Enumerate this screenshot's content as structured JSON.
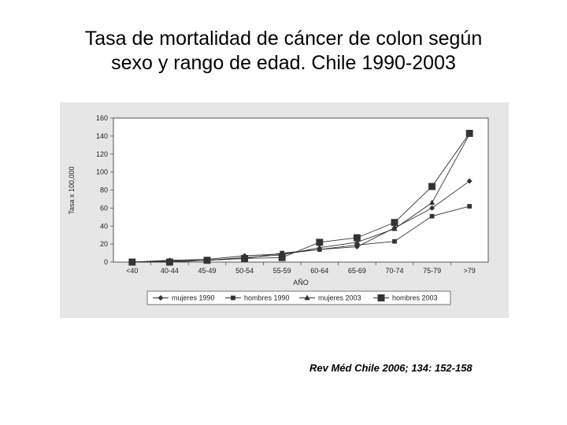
{
  "slide": {
    "title_line1": "Tasa de mortalidad de cáncer de colon según",
    "title_line2": "sexo y rango de edad. Chile 1990-2003",
    "citation": "Rev Méd Chile 2006; 134: 152-158"
  },
  "chart_data": {
    "type": "line",
    "title": "Tasa de mortalidad de cáncer de colon según sexo y rango de edad. Chile 1990-2003",
    "xlabel": "AÑO",
    "ylabel": "Tasa x 100,000",
    "categories": [
      "<40",
      "40-44",
      "45-49",
      "50-54",
      "55-59",
      "60-64",
      "65-69",
      "70-74",
      "75-79",
      ">79"
    ],
    "ylim": [
      0,
      160
    ],
    "yticks": [
      0,
      20,
      40,
      60,
      80,
      100,
      120,
      140,
      160
    ],
    "grid": false,
    "legend_position": "bottom",
    "series": [
      {
        "name": "mujeres 1990",
        "marker": "diamond",
        "values": [
          0,
          2,
          3,
          7,
          9,
          14,
          17,
          38,
          60,
          90
        ]
      },
      {
        "name": "hombres 1990",
        "marker": "square-small",
        "values": [
          0,
          1,
          2,
          4,
          10,
          14,
          19,
          23,
          51,
          62
        ]
      },
      {
        "name": "mujeres 2003",
        "marker": "triangle",
        "values": [
          0,
          1,
          2,
          5,
          8,
          16,
          22,
          37,
          66,
          142
        ]
      },
      {
        "name": "hombres 2003",
        "marker": "square-large",
        "values": [
          0,
          0,
          2,
          4,
          5,
          22,
          27,
          44,
          84,
          143
        ]
      }
    ],
    "colors": {
      "line": "#333333",
      "background": "#e6e6e6",
      "plot_background": "#ffffff"
    }
  }
}
